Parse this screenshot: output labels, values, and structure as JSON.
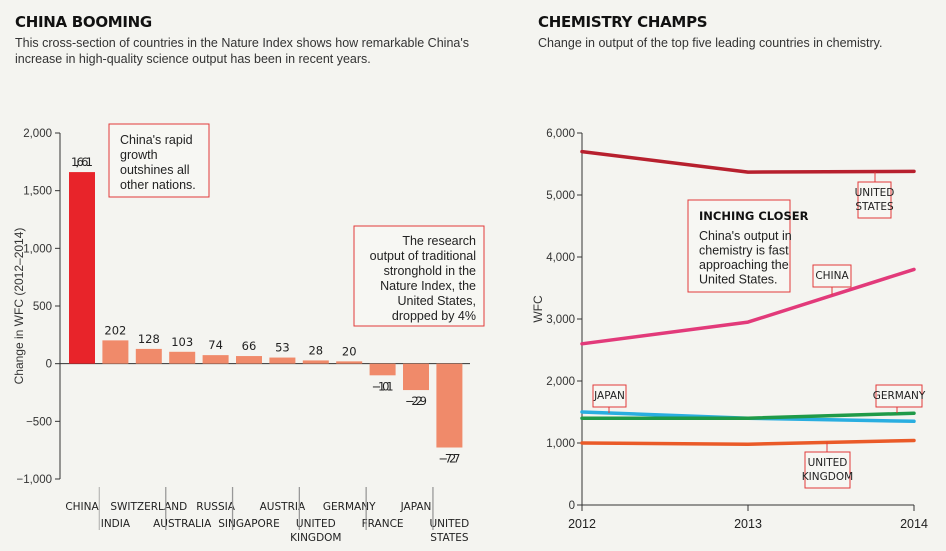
{
  "left": {
    "title": "CHINA BOOMING",
    "subtitle_lines": [
      "This cross-section of countries in the Nature Index shows how remarkable China's",
      "increase in high-quality science output has been in recent years."
    ],
    "annotation_china": [
      "China's rapid",
      "growth",
      "outshines all",
      "other nations."
    ],
    "annotation_us": [
      "The research",
      "output of traditional",
      "stronghold in the",
      "Nature Index, the",
      "United States,",
      "dropped by 4%"
    ]
  },
  "right": {
    "title": "CHEMISTRY CHAMPS",
    "subtitle": "Change in output of the top five leading countries in chemistry.",
    "callout_title": "INCHING CLOSER",
    "callout_lines": [
      "China's output in",
      "chemistry is fast",
      "approaching the",
      "United States."
    ]
  },
  "colors": {
    "china_bar": "#e8242a",
    "other_bar": "#f08a6a",
    "us_line": "#b7202e",
    "china_line": "#e23a7a",
    "japan_line": "#29aee0",
    "germany_line": "#1f9a48",
    "uk_line": "#ea5a28",
    "label_border": "#e23a3a"
  },
  "chart_data": [
    {
      "type": "bar",
      "title": "CHINA BOOMING",
      "ylabel": "Change in WFC (2012–2014)",
      "xlabel": "",
      "ylim": [
        -1000,
        2000
      ],
      "yticks": [
        -1000,
        -500,
        0,
        500,
        1000,
        1500,
        2000
      ],
      "ytick_labels": [
        "−1,000",
        "−500",
        "0",
        "500",
        "1,000",
        "1,500",
        "2,000"
      ],
      "categories": [
        {
          "lines": [
            "CHINA"
          ],
          "row": 0
        },
        {
          "lines": [
            "INDIA"
          ],
          "row": 1
        },
        {
          "lines": [
            "SWITZERLAND"
          ],
          "row": 0
        },
        {
          "lines": [
            "AUSTRALIA"
          ],
          "row": 1
        },
        {
          "lines": [
            "RUSSIA"
          ],
          "row": 0
        },
        {
          "lines": [
            "SINGAPORE"
          ],
          "row": 1
        },
        {
          "lines": [
            "AUSTRIA"
          ],
          "row": 0
        },
        {
          "lines": [
            "UNITED",
            "KINGDOM"
          ],
          "row": 1
        },
        {
          "lines": [
            "GERMANY"
          ],
          "row": 0
        },
        {
          "lines": [
            "FRANCE"
          ],
          "row": 1
        },
        {
          "lines": [
            "JAPAN"
          ],
          "row": 0
        },
        {
          "lines": [
            "UNITED",
            "STATES"
          ],
          "row": 1
        }
      ],
      "values": [
        1661,
        202,
        128,
        103,
        74,
        66,
        53,
        28,
        20,
        -101,
        -229,
        -727
      ],
      "value_labels": [
        "1,661",
        "202",
        "128",
        "103",
        "74",
        "66",
        "53",
        "28",
        "20",
        "−101",
        "−229",
        "−727"
      ]
    },
    {
      "type": "line",
      "title": "CHEMISTRY CHAMPS",
      "ylabel": "WFC",
      "xlabel": "",
      "x": [
        2012,
        2013,
        2014
      ],
      "x_labels": [
        "2012",
        "2013",
        "2014"
      ],
      "ylim": [
        0,
        6000
      ],
      "yticks": [
        0,
        1000,
        2000,
        3000,
        4000,
        5000,
        6000
      ],
      "ytick_labels": [
        "0",
        "1,000",
        "2,000",
        "3,000",
        "4,000",
        "5,000",
        "6,000"
      ],
      "series": [
        {
          "name": "UNITED STATES",
          "label_lines": [
            "UNITED",
            "STATES"
          ],
          "values": [
            5700,
            5370,
            5380
          ],
          "color_key": "us_line"
        },
        {
          "name": "CHINA",
          "label_lines": [
            "CHINA"
          ],
          "values": [
            2600,
            2950,
            3800
          ],
          "color_key": "china_line"
        },
        {
          "name": "JAPAN",
          "label_lines": [
            "JAPAN"
          ],
          "values": [
            1500,
            1400,
            1350
          ],
          "color_key": "japan_line"
        },
        {
          "name": "GERMANY",
          "label_lines": [
            "GERMANY"
          ],
          "values": [
            1400,
            1400,
            1480
          ],
          "color_key": "germany_line"
        },
        {
          "name": "UNITED KINGDOM",
          "label_lines": [
            "UNITED",
            "KINGDOM"
          ],
          "values": [
            1000,
            980,
            1040
          ],
          "color_key": "uk_line"
        }
      ]
    }
  ]
}
